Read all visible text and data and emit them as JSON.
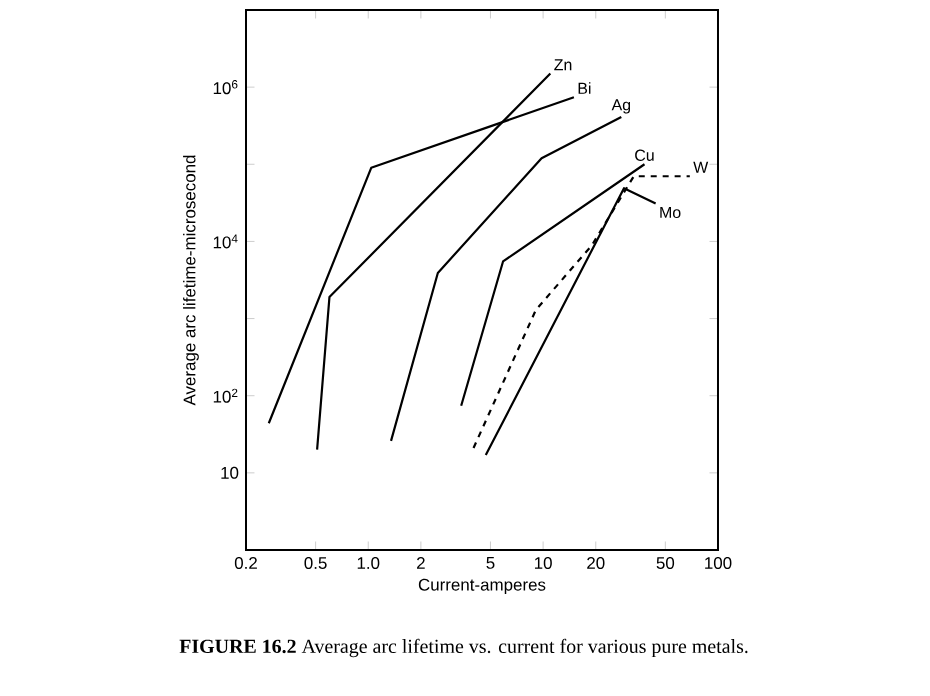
{
  "chart_data": {
    "type": "line",
    "title": "**FIGURE 16.2** Average arc lifetime vs. current for various pure metals.",
    "xlabel": "Current-amperes",
    "ylabel": "Average arc lifetime-microsecond",
    "log": "xy",
    "xlim": [
      0.2,
      100
    ],
    "ylim": [
      1,
      10000000
    ],
    "xticks": [
      0.2,
      0.5,
      {
        "value": 1,
        "label": "1.0"
      },
      2,
      5,
      10,
      20,
      50,
      100
    ],
    "yticks": [
      10,
      {
        "value": 100,
        "label": "10$^{2}$"
      },
      {
        "value": 1000,
        "label": null
      },
      {
        "value": 10000,
        "label": "10$^{4}$"
      },
      {
        "value": 100000,
        "label": null
      },
      {
        "value": 1000000,
        "label": "10$^{6}$"
      }
    ],
    "marker": "none",
    "series": [
      {
        "name": "Zn",
        "color": "#000000",
        "line_style": "solid",
        "x": [
          0.51,
          0.6,
          11
        ],
        "values": [
          20,
          1900,
          1500000
        ]
      },
      {
        "name": "Bi",
        "color": "#000000",
        "line_style": "solid",
        "x": [
          0.27,
          1.04,
          15
        ],
        "values": [
          44,
          90000,
          740000
        ]
      },
      {
        "name": "Ag",
        "color": "#000000",
        "line_style": "solid",
        "x": [
          1.35,
          2.5,
          9.8,
          28
        ],
        "values": [
          26,
          3900,
          120000,
          410000
        ]
      },
      {
        "name": "Cu",
        "color": "#000000",
        "line_style": "solid",
        "x": [
          3.4,
          5.9,
          38
        ],
        "values": [
          74,
          5500,
          100000
        ]
      },
      {
        "name": "W",
        "color": "#000000",
        "line_style": "dashed",
        "x": [
          4,
          9.1,
          19,
          33,
          69
        ],
        "values": [
          21,
          1300,
          8900,
          70000,
          70000
        ]
      },
      {
        "name": "Mo",
        "color": "#000000",
        "line_style": "solid",
        "x": [
          4.7,
          29,
          44
        ],
        "values": [
          17,
          49000,
          31000
        ]
      }
    ]
  }
}
